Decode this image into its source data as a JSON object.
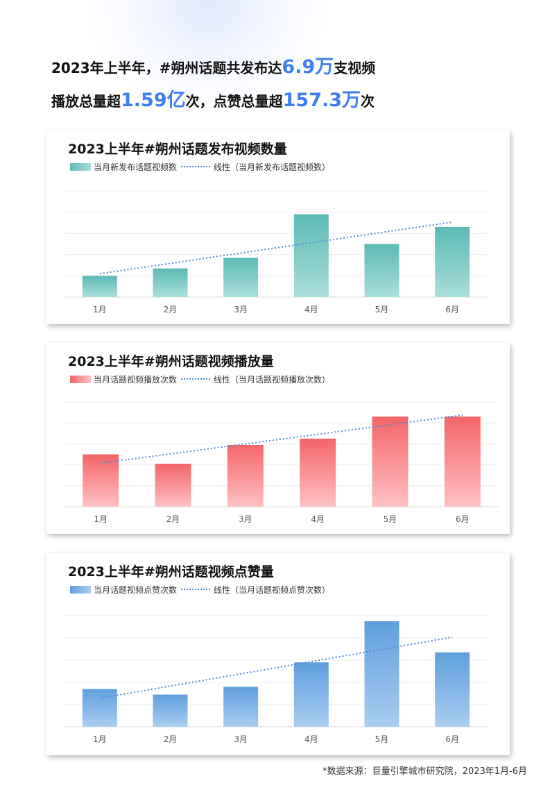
{
  "headline": {
    "line1": {
      "pre": "2023年上半年，#朔州话题共发布达",
      "num": "6.9万",
      "post": "支视频"
    },
    "line2": {
      "pre": "播放总量超",
      "num1": "1.59亿",
      "mid": "次，点赞总量超",
      "num2": "157.3万",
      "post": "次"
    }
  },
  "colors": {
    "accent": "#3f7ef2",
    "trend_line": "#4a8bd6"
  },
  "chart_data": [
    {
      "type": "bar",
      "title": "2023上半年#朔州话题发布视频数量",
      "categories": [
        "1月",
        "2月",
        "3月",
        "4月",
        "5月",
        "6月"
      ],
      "series": [
        {
          "name": "当月新发布话题视频数",
          "values": [
            1.0,
            1.35,
            1.85,
            3.9,
            2.5,
            3.3
          ],
          "color_top": "#5dbab5",
          "color_bottom": "#a9dedb"
        }
      ],
      "trend": {
        "name": "线性（当月新发布话题视频数）",
        "type": "linear"
      },
      "ylim": [
        0,
        5
      ],
      "grid": true,
      "legend": "top-left"
    },
    {
      "type": "bar",
      "title": "2023上半年#朔州话题视频播放量",
      "categories": [
        "1月",
        "2月",
        "3月",
        "4月",
        "5月",
        "6月"
      ],
      "series": [
        {
          "name": "当月话题视频播放次数",
          "values": [
            2.5,
            2.05,
            2.95,
            3.25,
            4.3,
            4.3
          ],
          "color_top": "#f46566",
          "color_bottom": "#ffc1c4"
        }
      ],
      "trend": {
        "name": "线性（当月话题视频播放次数）",
        "type": "linear"
      },
      "ylim": [
        0,
        5
      ],
      "grid": true,
      "legend": "top-left"
    },
    {
      "type": "bar",
      "title": "2023上半年#朔州话题视频点赞量",
      "categories": [
        "1月",
        "2月",
        "3月",
        "4月",
        "5月",
        "6月"
      ],
      "series": [
        {
          "name": "当月话题视频点赞次数",
          "values": [
            1.7,
            1.45,
            1.8,
            2.9,
            4.75,
            3.35
          ],
          "color_top": "#5f9fdd",
          "color_bottom": "#a9cdf1"
        }
      ],
      "trend": {
        "name": "线性（当月话题视频点赞次数）",
        "type": "linear"
      },
      "ylim": [
        0,
        5
      ],
      "grid": true,
      "legend": "top-left"
    }
  ],
  "source": "*数据来源：巨量引擎城市研究院，2023年1月-6月"
}
